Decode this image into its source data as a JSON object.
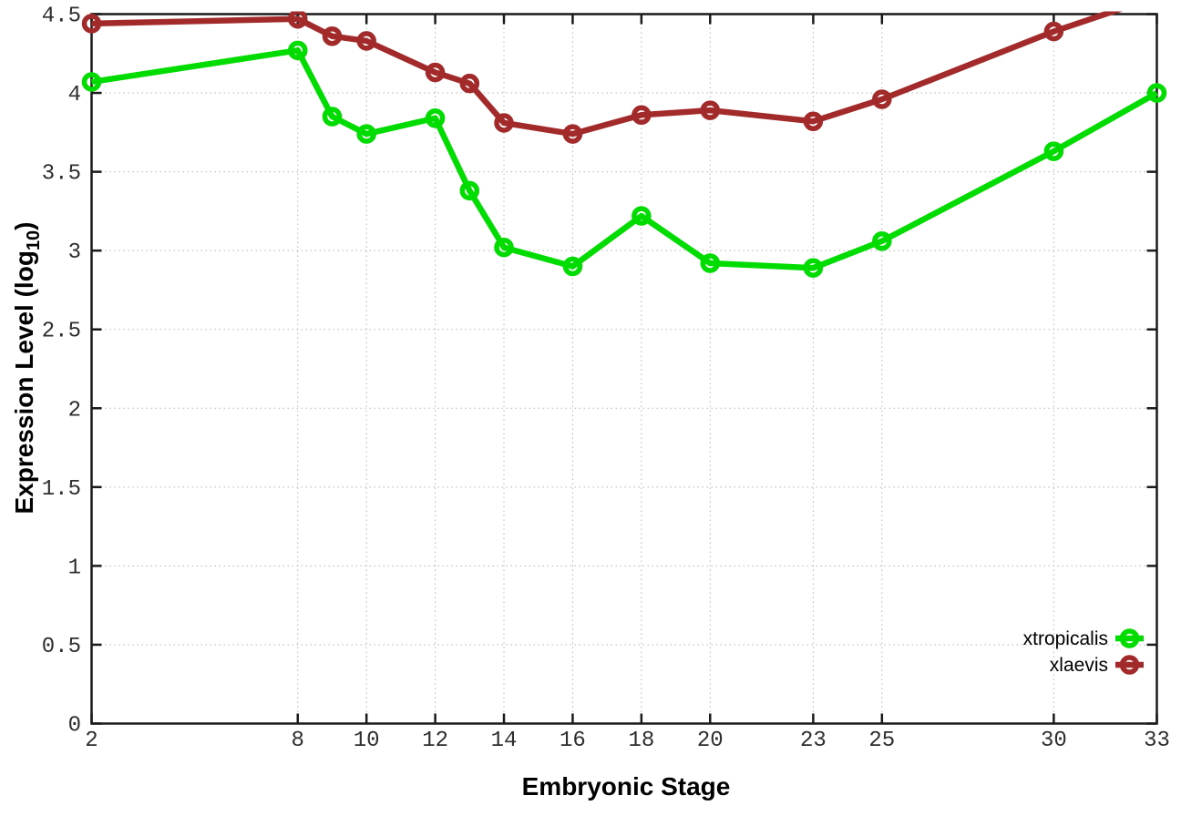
{
  "chart_data": {
    "type": "line",
    "title": "",
    "xlabel": "Embryonic Stage",
    "ylabel": "Expression Level (log10)",
    "ylabel_parts": {
      "prefix": "Expression Level (log",
      "sub": "10",
      "suffix": ")"
    },
    "xlim": [
      2,
      33
    ],
    "ylim": [
      0,
      4.5
    ],
    "xticks": [
      2,
      8,
      10,
      12,
      14,
      16,
      18,
      20,
      23,
      25,
      30,
      33
    ],
    "yticks": [
      0,
      0.5,
      1,
      1.5,
      2,
      2.5,
      3,
      3.5,
      4,
      4.5
    ],
    "grid": true,
    "legend_position": "inside-bottom-right",
    "marker": "open-circle",
    "x": [
      2,
      8,
      9,
      10,
      12,
      13,
      14,
      16,
      18,
      20,
      23,
      25,
      30,
      33
    ],
    "series": [
      {
        "name": "xtropicalis",
        "color": "#00dc00",
        "values": [
          4.07,
          4.27,
          3.85,
          3.74,
          3.84,
          3.38,
          3.02,
          2.9,
          3.22,
          2.92,
          2.89,
          3.06,
          3.63,
          4.0
        ]
      },
      {
        "name": "xlaevis",
        "color": "#a32a2a",
        "values": [
          4.44,
          4.47,
          4.36,
          4.33,
          4.13,
          4.06,
          3.81,
          3.74,
          3.86,
          3.89,
          3.82,
          3.96,
          4.39,
          4.61
        ]
      }
    ],
    "colors": {
      "axis": "#1a1a1a",
      "grid": "#b5b5b5",
      "tick_text": "#2e2e2e",
      "background": "#ffffff"
    }
  }
}
